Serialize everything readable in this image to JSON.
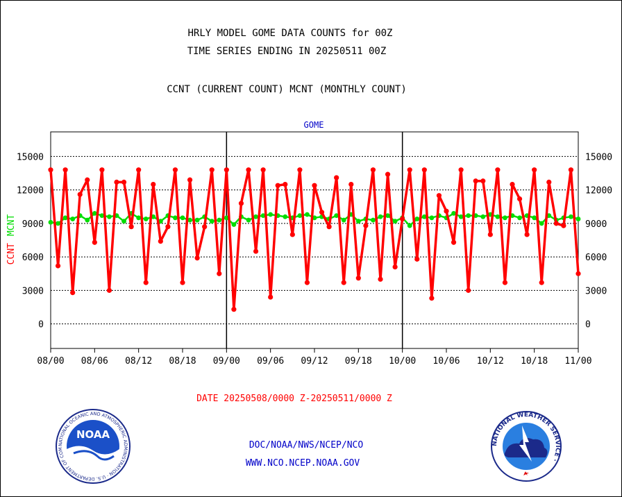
{
  "header": {
    "title_line1": "HRLY MODEL GOME DATA COUNTS for 00Z",
    "title_line2": "TIME SERIES ENDING IN 20250511 00Z",
    "subtitle": "CCNT (CURRENT COUNT) MCNT (MONTHLY COUNT)"
  },
  "footer": {
    "date_range": "DATE 20250508/0000 Z-20250511/0000 Z",
    "org_line": "DOC/NOAA/NWS/NCEP/NCO",
    "url_line": "WWW.NCO.NCEP.NOAA.GOV"
  },
  "logos": {
    "noaa": {
      "center_text": "NOAA",
      "ring_text": "NATIONAL OCEANIC AND ATMOSPHERIC ADMINISTRATION · U.S. DEPARTMENT OF COMMERCE ·"
    },
    "nws": {
      "ring_text": "NATIONAL WEATHER SERVICE ·"
    }
  },
  "colors": {
    "ccnt": "#ff0000",
    "mcnt": "#00dd00",
    "axis_title": "#0000c8",
    "date_label": "#ff0000",
    "footer_text": "#0000c8"
  },
  "chart_data": {
    "type": "line",
    "title": "GOME",
    "ylabel_parts": [
      {
        "text": "CCNT",
        "color": "#ff0000"
      },
      {
        "text": "MCNT",
        "color": "#00dd00"
      }
    ],
    "yticks": [
      0,
      3000,
      6000,
      9000,
      12000,
      15000
    ],
    "ylim": [
      -2200,
      17200
    ],
    "xticks": [
      "08/00",
      "08/06",
      "08/12",
      "08/18",
      "09/00",
      "09/06",
      "09/12",
      "09/18",
      "10/00",
      "10/06",
      "10/12",
      "10/18",
      "11/00"
    ],
    "xlim": [
      0,
      72
    ],
    "grid": "horizontal",
    "day_dividers": [
      24,
      48
    ],
    "series": [
      {
        "name": "CCNT",
        "color": "#ff0000",
        "x": [
          0,
          1,
          2,
          3,
          4,
          5,
          6,
          7,
          8,
          9,
          10,
          11,
          12,
          13,
          14,
          15,
          16,
          17,
          18,
          19,
          20,
          21,
          22,
          23,
          24,
          25,
          26,
          27,
          28,
          29,
          30,
          31,
          32,
          33,
          34,
          35,
          36,
          37,
          38,
          39,
          40,
          41,
          42,
          43,
          44,
          45,
          46,
          47,
          48,
          49,
          50,
          51,
          52,
          53,
          54,
          55,
          56,
          57,
          58,
          59,
          60,
          61,
          62,
          63,
          64,
          65,
          66,
          67,
          68,
          69,
          70,
          71,
          72
        ],
        "values": [
          13800,
          5200,
          13800,
          2800,
          11600,
          12900,
          7300,
          13800,
          3000,
          12700,
          12700,
          8700,
          13800,
          3700,
          12500,
          7400,
          8700,
          13800,
          3700,
          12900,
          5900,
          8700,
          13800,
          4500,
          13800,
          1300,
          10800,
          13800,
          6500,
          13800,
          2400,
          12400,
          12500,
          8000,
          13800,
          3700,
          12400,
          10000,
          8700,
          13100,
          3700,
          12500,
          4100,
          8800,
          13800,
          4000,
          13400,
          5100,
          9400,
          13800,
          5800,
          13800,
          2300,
          11500,
          10100,
          7300,
          13800,
          3000,
          12800,
          12800,
          8000,
          13800,
          3700,
          12500,
          11200,
          8000,
          13800,
          3700,
          12700,
          9000,
          8800,
          13800,
          4500
        ]
      },
      {
        "name": "MCNT",
        "color": "#00dd00",
        "x": [
          0,
          1,
          2,
          3,
          4,
          5,
          6,
          7,
          8,
          9,
          10,
          11,
          12,
          13,
          14,
          15,
          16,
          17,
          18,
          19,
          20,
          21,
          22,
          23,
          24,
          25,
          26,
          27,
          28,
          29,
          30,
          31,
          32,
          33,
          34,
          35,
          36,
          37,
          38,
          39,
          40,
          41,
          42,
          43,
          44,
          45,
          46,
          47,
          48,
          49,
          50,
          51,
          52,
          53,
          54,
          55,
          56,
          57,
          58,
          59,
          60,
          61,
          62,
          63,
          64,
          65,
          66,
          67,
          68,
          69,
          70,
          71,
          72
        ],
        "values": [
          9100,
          9000,
          9500,
          9400,
          9700,
          9300,
          9900,
          9700,
          9600,
          9700,
          9200,
          9900,
          9500,
          9400,
          9600,
          9200,
          9700,
          9500,
          9500,
          9300,
          9300,
          9600,
          9200,
          9300,
          9500,
          8900,
          9600,
          9300,
          9600,
          9700,
          9800,
          9700,
          9600,
          9500,
          9700,
          9800,
          9500,
          9600,
          9400,
          9700,
          9300,
          9800,
          9200,
          9400,
          9300,
          9600,
          9700,
          9200,
          9500,
          8800,
          9400,
          9600,
          9500,
          9700,
          9500,
          9900,
          9600,
          9700,
          9700,
          9600,
          9800,
          9600,
          9500,
          9700,
          9500,
          9700,
          9500,
          9000,
          9700,
          9300,
          9500,
          9600,
          9400
        ]
      }
    ]
  }
}
